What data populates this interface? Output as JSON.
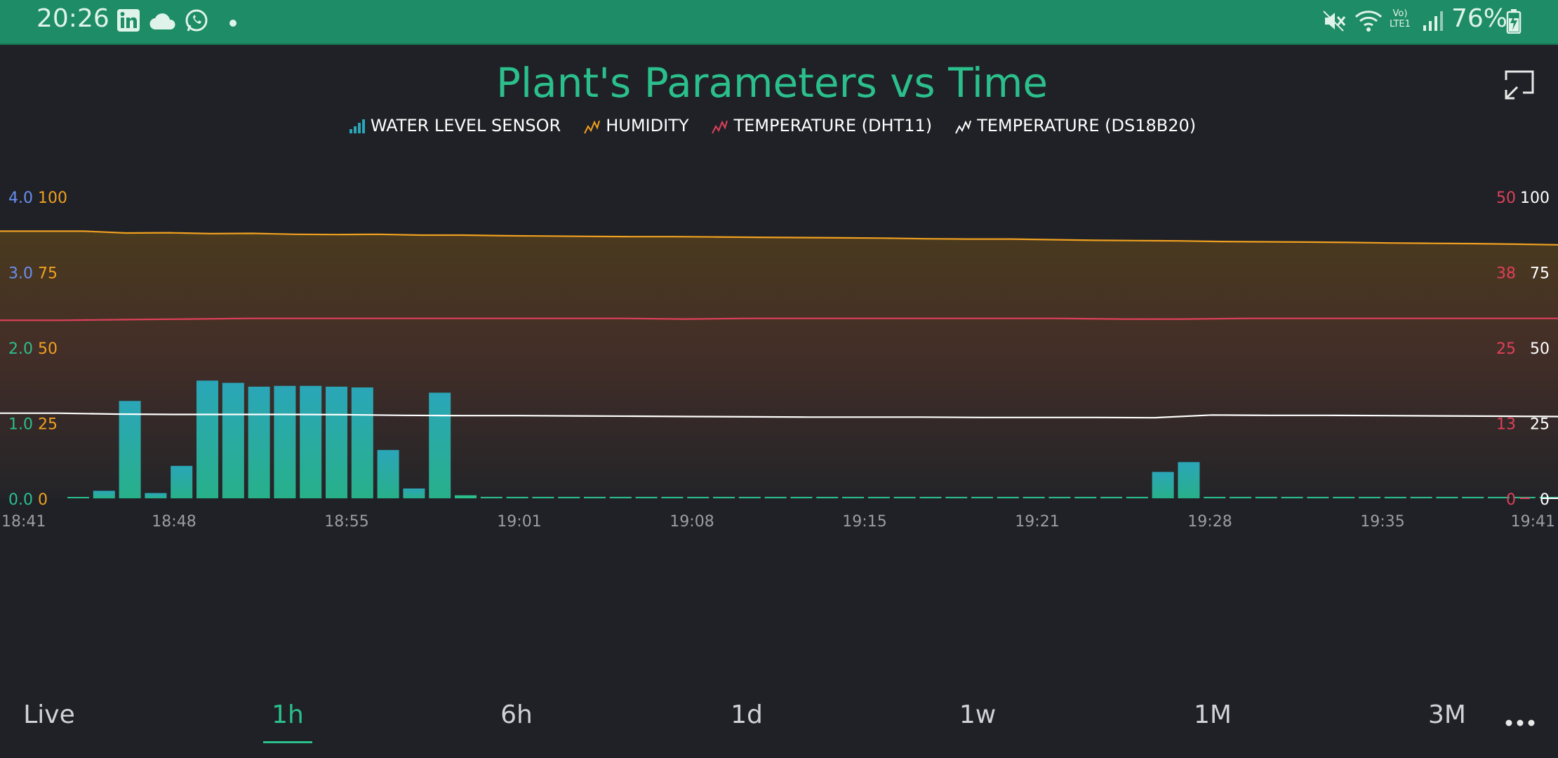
{
  "status_bar": {
    "time": "20:26",
    "battery": "76%",
    "network": "LTE1",
    "left_icons": [
      "linkedin-icon",
      "cloud-icon",
      "whatsapp-icon",
      "dot-icon"
    ],
    "right_icons": [
      "mute-icon",
      "wifi-icon",
      "volte-icon",
      "signal-icon",
      "battery-charging-icon"
    ],
    "bg_color": "#1e8c66"
  },
  "chart_data": {
    "type": "line",
    "title": "Plant's Parameters vs Time",
    "legend": [
      {
        "name": "WATER LEVEL SENSOR",
        "color": "#2aa6b8",
        "icon": "bar-chart-icon"
      },
      {
        "name": "HUMIDITY",
        "color": "#f0a020",
        "icon": "line-chart-icon"
      },
      {
        "name": "TEMPERATURE (DHT11)",
        "color": "#e0405a",
        "icon": "line-chart-icon"
      },
      {
        "name": "TEMPERATURE (DS18B20)",
        "color": "#ffffff",
        "icon": "line-chart-icon"
      }
    ],
    "x_ticks": [
      "18:41",
      "18:48",
      "18:55",
      "19:01",
      "19:08",
      "19:15",
      "19:21",
      "19:28",
      "19:35",
      "19:41"
    ],
    "y_axes": {
      "water_level": {
        "ticks": [
          "4.0",
          "3.0",
          "2.0",
          "1.0",
          "0.0"
        ],
        "range": [
          0,
          4
        ],
        "color": "#6a8ff0",
        "low_color": "#2bbf8c"
      },
      "humidity": {
        "ticks": [
          "100",
          "75",
          "50",
          "25",
          "0"
        ],
        "range": [
          0,
          100
        ],
        "color": "#f0a020"
      },
      "temp_dht11": {
        "ticks": [
          "50",
          "38",
          "25",
          "13",
          "0"
        ],
        "range": [
          0,
          50
        ],
        "color": "#e0405a"
      },
      "temp_ds18b20": {
        "ticks": [
          "100",
          "75",
          "50",
          "25",
          "0"
        ],
        "range": [
          0,
          100
        ],
        "color": "#ffffff"
      }
    },
    "series": [
      {
        "name": "WATER LEVEL SENSOR",
        "type": "bar",
        "color": "#2aa6b8",
        "values": [
          0.0,
          0.1,
          1.29,
          0.07,
          0.43,
          1.56,
          1.53,
          1.48,
          1.49,
          1.49,
          1.48,
          1.47,
          0.64,
          0.13,
          1.4,
          0.04,
          0.02,
          0.02,
          0.02,
          0.02,
          0.02,
          0.02,
          0.02,
          0.02,
          0.02,
          0.02,
          0.02,
          0.02,
          0.02,
          0.02,
          0.02,
          0.02,
          0.02,
          0.02,
          0.02,
          0.02,
          0.02,
          0.02,
          0.02,
          0.02,
          0.02,
          0.02,
          0.35,
          0.48,
          0.02,
          0.02,
          0.02,
          0.02,
          0.02,
          0.02,
          0.02,
          0.02,
          0.02,
          0.02,
          0.02,
          0.02,
          0.02,
          0.02
        ]
      },
      {
        "name": "HUMIDITY",
        "type": "area",
        "color": "#f0a020",
        "values": [
          88.5,
          88.5,
          88.5,
          87.9,
          88.0,
          87.7,
          87.8,
          87.5,
          87.4,
          87.5,
          87.2,
          87.2,
          87.0,
          86.9,
          86.8,
          86.7,
          86.7,
          86.6,
          86.5,
          86.4,
          86.3,
          86.2,
          86.0,
          85.9,
          85.9,
          85.7,
          85.5,
          85.4,
          85.3,
          85.1,
          85.0,
          84.9,
          84.8,
          84.6,
          84.5,
          84.4,
          84.2,
          84.0
        ]
      },
      {
        "name": "TEMPERATURE (DHT11)",
        "type": "line",
        "color": "#e0405a",
        "values": [
          29.5,
          29.5,
          29.6,
          29.7,
          29.8,
          29.8,
          29.8,
          29.8,
          29.8,
          29.8,
          29.8,
          29.7,
          29.8,
          29.8,
          29.8,
          29.8,
          29.8,
          29.8,
          29.7,
          29.7,
          29.8,
          29.8,
          29.8,
          29.8,
          29.8,
          29.8
        ]
      },
      {
        "name": "TEMPERATURE (DS18B20)",
        "type": "line",
        "color": "#ffffff",
        "values": [
          28.2,
          28.2,
          27.9,
          27.8,
          27.8,
          27.8,
          27.7,
          27.5,
          27.4,
          27.4,
          27.3,
          27.2,
          27.1,
          27.0,
          26.9,
          26.9,
          26.9,
          26.8,
          26.8,
          26.8,
          26.7,
          27.6,
          27.5,
          27.5,
          27.4,
          27.3,
          27.2,
          27.1
        ]
      }
    ],
    "grid": false,
    "legend_position": "top-center"
  },
  "range_selector": {
    "options": [
      "Live",
      "1h",
      "6h",
      "1d",
      "1w",
      "1M",
      "3M"
    ],
    "selected": "1h",
    "accent": "#2bbf8c"
  }
}
